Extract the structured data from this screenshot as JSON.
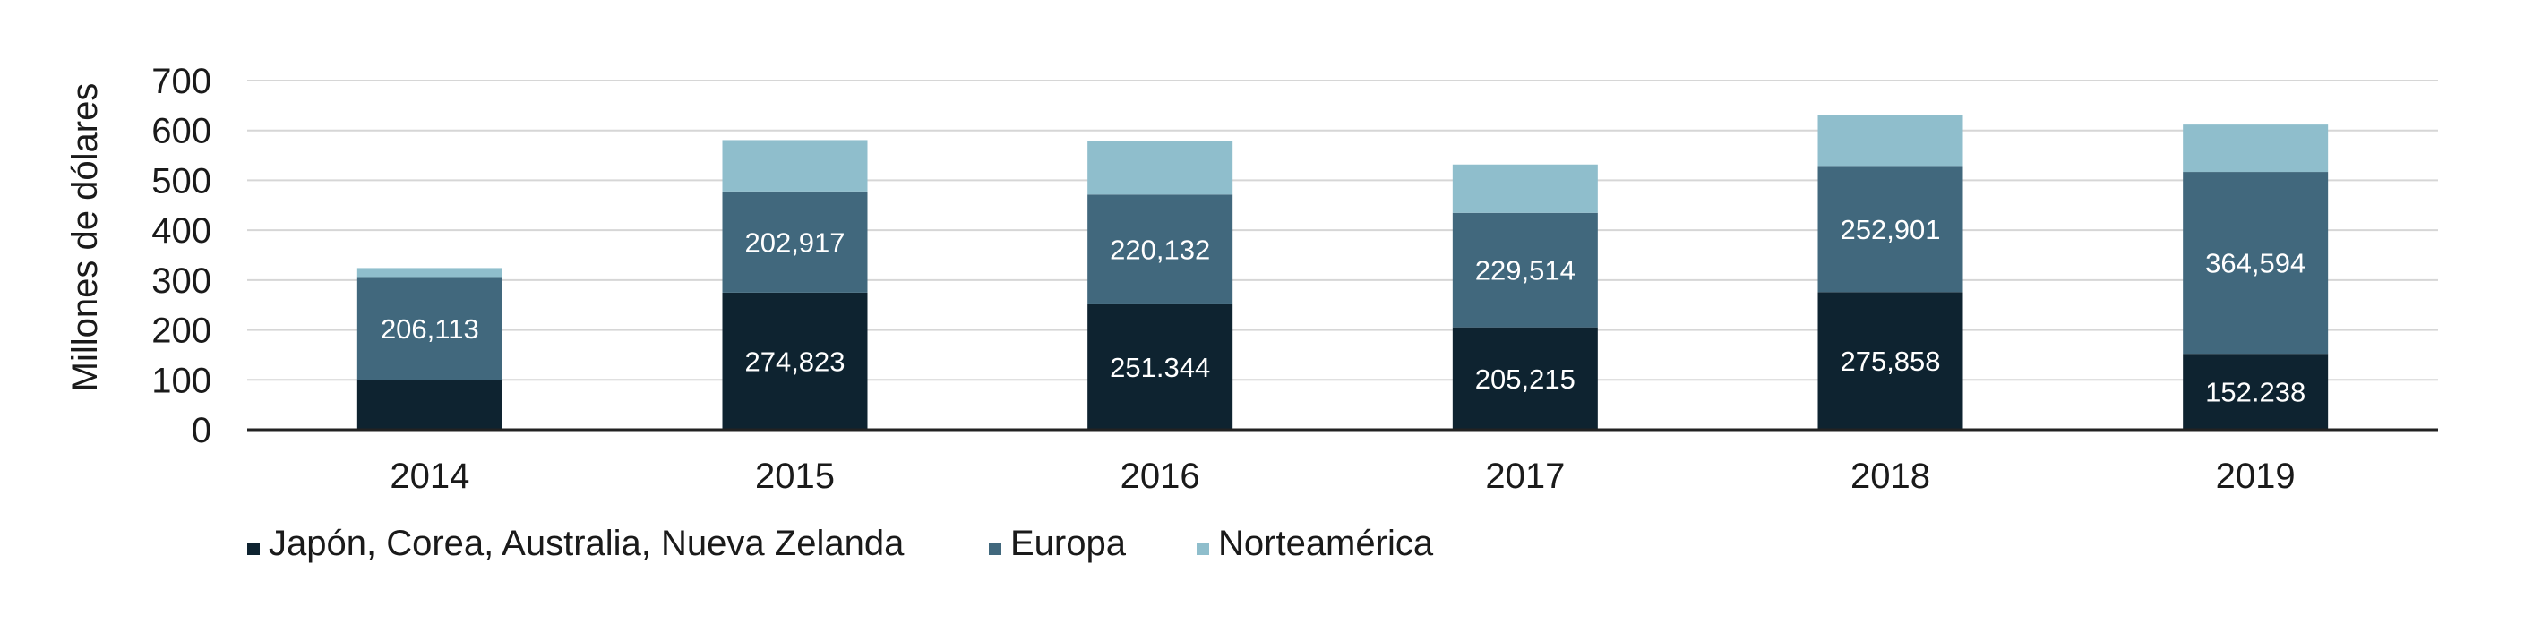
{
  "chart_data": {
    "type": "bar",
    "stacked": true,
    "title": "",
    "xlabel": "",
    "ylabel": "Millones de dólares",
    "ylim": [
      0,
      700
    ],
    "yticks": [
      0,
      100,
      200,
      300,
      400,
      500,
      600,
      700
    ],
    "grid": true,
    "legend_position": "bottom-left",
    "categories": [
      "2014",
      "2015",
      "2016",
      "2017",
      "2018",
      "2019"
    ],
    "series": [
      {
        "name": "Japón, Corea, Australia, Nueva Zelanda",
        "color": "#0e2330",
        "values": [
          100,
          274.823,
          251.344,
          205.215,
          275.858,
          152.238
        ],
        "labels": [
          "",
          "274,823",
          "251.344",
          "205,215",
          "275,858",
          "152.238"
        ]
      },
      {
        "name": "Europa",
        "color": "#41687d",
        "values": [
          206.113,
          202.917,
          220.132,
          229.514,
          252.901,
          364.594
        ],
        "labels": [
          "206,113",
          "202,917",
          "220,132",
          "229,514",
          "252,901",
          "364,594"
        ]
      },
      {
        "name": "Norteamérica",
        "color": "#8fbecc",
        "values": [
          18,
          103,
          108,
          97,
          102,
          95
        ],
        "labels": [
          "",
          "",
          "",
          "",
          "",
          ""
        ]
      }
    ]
  }
}
